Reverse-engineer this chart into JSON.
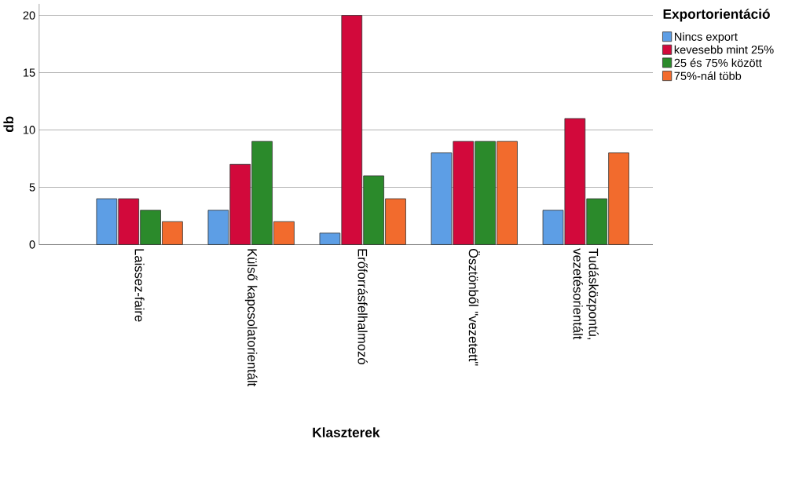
{
  "chart_data": {
    "type": "bar",
    "xlabel": "Klaszterek",
    "ylabel": "db",
    "legend_title": "Exportorientáció",
    "legend": "top right",
    "categories": [
      "Laissez-faire",
      "Külső kapcsolatorientált",
      "Erőforrásfelhalmozó",
      "Ösztönből \"vezetett\"",
      "Tudásközpontú, vezetésorientált"
    ],
    "series": [
      {
        "name": "Nincs export",
        "color": "#5d9ee5",
        "values": [
          4,
          3,
          1,
          8,
          3
        ]
      },
      {
        "name": "kevesebb mint 25%",
        "color": "#d2093b",
        "values": [
          4,
          7,
          20,
          9,
          11
        ]
      },
      {
        "name": "25 és 75% között",
        "color": "#2b8a2b",
        "values": [
          3,
          9,
          6,
          9,
          4
        ]
      },
      {
        "name": "75%-nál több",
        "color": "#f26b2d",
        "values": [
          2,
          2,
          4,
          9,
          8
        ]
      }
    ],
    "ylim": [
      0,
      21
    ],
    "yticks": [
      0,
      5,
      10,
      15,
      20
    ],
    "grid": "y"
  }
}
